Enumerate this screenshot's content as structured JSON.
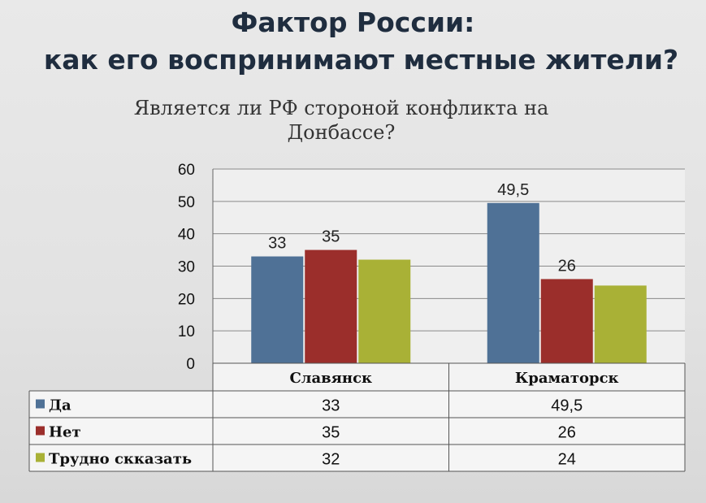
{
  "slide": {
    "title_line1": "Фактор России:",
    "title_line2": "как его воспринимают местные жители?"
  },
  "chart_data": {
    "type": "bar",
    "title": "Является ли РФ стороной конфликта на Донбассе?",
    "categories": [
      "Славянск",
      "Краматорск"
    ],
    "series": [
      {
        "name": "Да",
        "values": [
          33,
          49.5
        ],
        "value_labels": [
          "33",
          "49,5"
        ],
        "color": "#4f7196"
      },
      {
        "name": "Нет",
        "values": [
          35,
          26
        ],
        "value_labels": [
          "35",
          "26"
        ],
        "color": "#9b2e2b"
      },
      {
        "name": "Трудно скказать",
        "values": [
          32,
          24
        ],
        "value_labels": [
          "32",
          "24"
        ],
        "color": "#a9b136"
      }
    ],
    "data_labels_shown": [
      [
        "33",
        "49,5"
      ],
      [
        "35",
        "26"
      ],
      [
        null,
        null
      ]
    ],
    "ylim": [
      0,
      60
    ],
    "yticks": [
      0,
      10,
      20,
      30,
      40,
      50,
      60
    ],
    "grid": true,
    "legend": "data table below chart"
  }
}
